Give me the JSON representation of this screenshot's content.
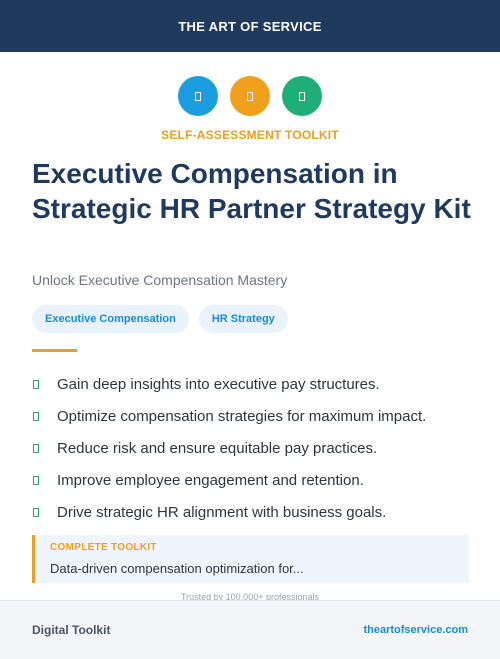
{
  "header": {
    "title": "THE ART OF SERVICE"
  },
  "icons": [
    {
      "name": "document-icon",
      "color": "#1a9ee0"
    },
    {
      "name": "document-icon",
      "color": "#f0a01a"
    },
    {
      "name": "document-icon",
      "color": "#1fae78"
    }
  ],
  "eyebrow": "SELF-ASSESSMENT TOOLKIT",
  "title": "Executive Compensation in Strategic HR Partner Strategy Kit",
  "subtitle": "Unlock Executive Compensation Mastery",
  "tags": [
    "Executive Compensation",
    "HR Strategy"
  ],
  "benefits": [
    "Gain deep insights into executive pay structures.",
    "Optimize compensation strategies for maximum impact.",
    "Reduce risk and ensure equitable pay practices.",
    "Improve employee engagement and retention.",
    "Drive strategic HR alignment with business goals."
  ],
  "callout": {
    "label": "COMPLETE TOOLKIT",
    "text": "Data-driven compensation optimization for..."
  },
  "trust_line": "Trusted by 100,000+ professionals",
  "footer": {
    "left": "Digital Toolkit",
    "right": "theartofservice.com"
  },
  "colors": {
    "header_bg": "#1f3a5c",
    "accent": "#e8a020",
    "link": "#1a8ad4",
    "check": "#2ea86a"
  }
}
